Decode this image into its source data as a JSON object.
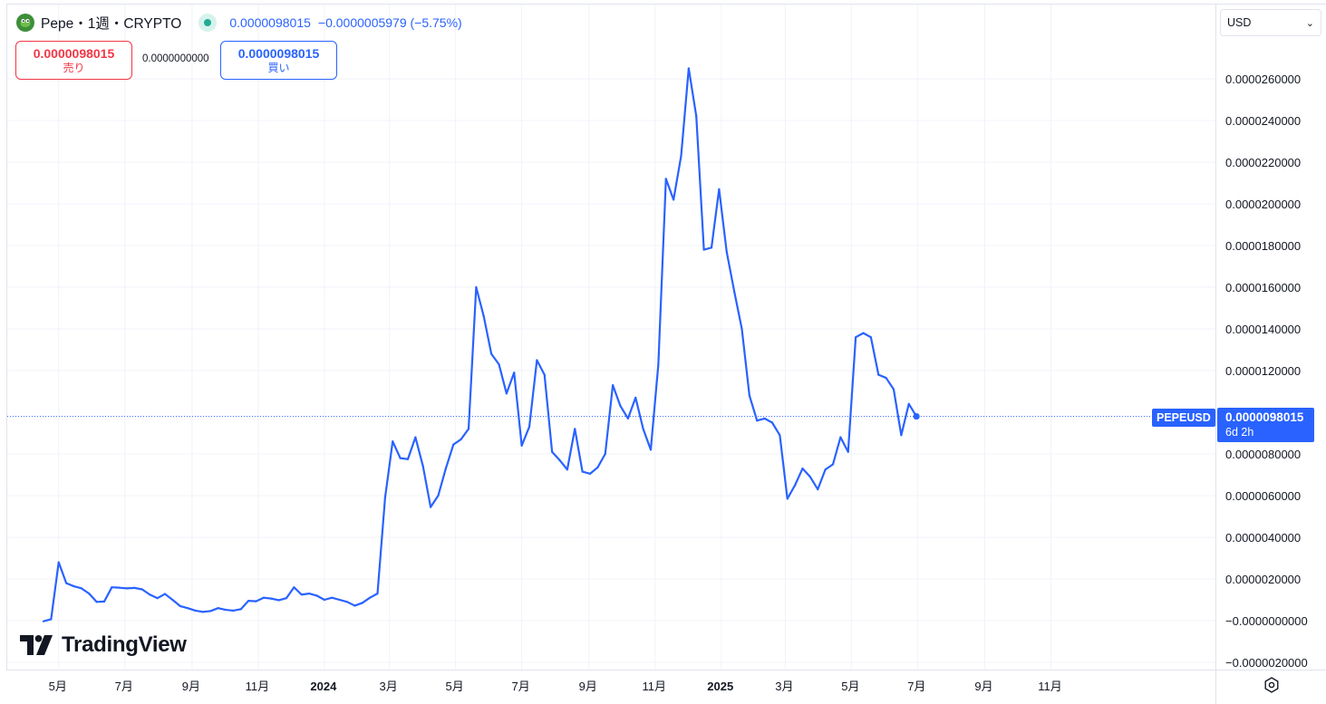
{
  "header": {
    "symbol_title": "Pepe・1週・CRYPTO",
    "last_price": "0.0000098015",
    "change": "−0.0000005979 (−5.75%)",
    "symbol_logo_icon": "frog-logo-icon",
    "status_icon": "market-open-dot-icon"
  },
  "trade": {
    "sell_price": "0.0000098015",
    "sell_label": "売り",
    "spread": "0.0000000000",
    "buy_price": "0.0000098015",
    "buy_label": "買い"
  },
  "currency": {
    "value": "USD"
  },
  "series_tag": "PEPEUSD",
  "last_price_tag": {
    "value": "0.0000098015",
    "countdown": "6d 2h"
  },
  "branding": {
    "wordmark": "TradingView"
  },
  "colors": {
    "line": "#2962ff",
    "sell": "#f23645",
    "buy": "#2962ff",
    "grid": "#f0f3fa"
  },
  "chart_data": {
    "type": "line",
    "series": [
      {
        "name": "PEPEUSD",
        "x": [
          "2023-04-17",
          "2023-04-24",
          "2023-05-01",
          "2023-05-08",
          "2023-05-15",
          "2023-05-22",
          "2023-05-29",
          "2023-06-05",
          "2023-06-12",
          "2023-06-19",
          "2023-06-26",
          "2023-07-03",
          "2023-07-10",
          "2023-07-17",
          "2023-07-24",
          "2023-07-31",
          "2023-08-07",
          "2023-08-14",
          "2023-08-21",
          "2023-08-28",
          "2023-09-04",
          "2023-09-11",
          "2023-09-18",
          "2023-09-25",
          "2023-10-02",
          "2023-10-09",
          "2023-10-16",
          "2023-10-23",
          "2023-10-30",
          "2023-11-06",
          "2023-11-13",
          "2023-11-20",
          "2023-11-27",
          "2023-12-04",
          "2023-12-11",
          "2023-12-18",
          "2023-12-25",
          "2024-01-01",
          "2024-01-08",
          "2024-01-15",
          "2024-01-22",
          "2024-01-29",
          "2024-02-05",
          "2024-02-12",
          "2024-02-19",
          "2024-02-26",
          "2024-03-04",
          "2024-03-11",
          "2024-03-18",
          "2024-03-25",
          "2024-04-01",
          "2024-04-08",
          "2024-04-15",
          "2024-04-22",
          "2024-04-29",
          "2024-05-06",
          "2024-05-13",
          "2024-05-20",
          "2024-05-27",
          "2024-06-03",
          "2024-06-10",
          "2024-06-17",
          "2024-06-24",
          "2024-07-01",
          "2024-07-08",
          "2024-07-15",
          "2024-07-22",
          "2024-07-29",
          "2024-08-05",
          "2024-08-12",
          "2024-08-19",
          "2024-08-26",
          "2024-09-02",
          "2024-09-09",
          "2024-09-16",
          "2024-09-23",
          "2024-09-30",
          "2024-10-07",
          "2024-10-14",
          "2024-10-21",
          "2024-10-28",
          "2024-11-04",
          "2024-11-11",
          "2024-11-18",
          "2024-11-25",
          "2024-12-02",
          "2024-12-09",
          "2024-12-16",
          "2024-12-23",
          "2024-12-30",
          "2025-01-06",
          "2025-01-13",
          "2025-01-20",
          "2025-01-27",
          "2025-02-03",
          "2025-02-10",
          "2025-02-17",
          "2025-02-24",
          "2025-03-03",
          "2025-03-10",
          "2025-03-17",
          "2025-03-24",
          "2025-03-31",
          "2025-04-07",
          "2025-04-14",
          "2025-04-21",
          "2025-04-28",
          "2025-05-05",
          "2025-05-12",
          "2025-05-19",
          "2025-05-26",
          "2025-06-02",
          "2025-06-09",
          "2025-06-16",
          "2025-06-23",
          "2025-06-30"
        ],
        "values": [
          -3e-08,
          7e-08,
          2.8e-06,
          1.8e-06,
          1.65e-06,
          1.55e-06,
          1.3e-06,
          9e-07,
          9.2e-07,
          1.6e-06,
          1.58e-06,
          1.55e-06,
          1.57e-06,
          1.5e-06,
          1.25e-06,
          1.08e-06,
          1.28e-06,
          1e-06,
          7e-07,
          6e-07,
          4.8e-07,
          4.2e-07,
          4.6e-07,
          6e-07,
          5.2e-07,
          4.8e-07,
          5.5e-07,
          9.5e-07,
          9.3e-07,
          1.1e-06,
          1.06e-06,
          9.8e-07,
          1.08e-06,
          1.6e-06,
          1.25e-06,
          1.3e-06,
          1.2e-06,
          1e-06,
          1.1e-06,
          1e-06,
          9e-07,
          7.2e-07,
          8.5e-07,
          1.1e-06,
          1.3e-06,
          5.9e-06,
          8.6e-06,
          7.8e-06,
          7.75e-06,
          8.8e-06,
          7.4e-06,
          5.45e-06,
          6e-06,
          7.3e-06,
          8.45e-06,
          8.7e-06,
          9.2e-06,
          1.6e-05,
          1.46e-05,
          1.28e-05,
          1.23e-05,
          1.09e-05,
          1.19e-05,
          8.4e-06,
          9.3e-06,
          1.25e-05,
          1.18e-05,
          8.1e-06,
          7.7e-06,
          7.25e-06,
          9.2e-06,
          7.15e-06,
          7.05e-06,
          7.35e-06,
          8e-06,
          1.13e-05,
          1.03e-05,
          9.7e-06,
          1.07e-05,
          9.2e-06,
          8.2e-06,
          1.23e-05,
          2.12e-05,
          2.02e-05,
          2.23e-05,
          2.65e-05,
          2.42e-05,
          1.78e-05,
          1.79e-05,
          2.07e-05,
          1.77e-05,
          1.58e-05,
          1.4e-05,
          1.08e-05,
          9.6e-06,
          9.7e-06,
          9.5e-06,
          8.9e-06,
          5.85e-06,
          6.5e-06,
          7.3e-06,
          6.9e-06,
          6.3e-06,
          7.25e-06,
          7.5e-06,
          8.8e-06,
          8.1e-06,
          1.36e-05,
          1.38e-05,
          1.36e-05,
          1.18e-05,
          1.165e-05,
          1.11e-05,
          8.9e-06,
          1.04e-05,
          9.8015e-06
        ]
      }
    ],
    "y_ticks": [
      "0.0000260000",
      "0.0000240000",
      "0.0000220000",
      "0.0000200000",
      "0.0000180000",
      "0.0000160000",
      "0.0000140000",
      "0.0000120000",
      "0.0000080000",
      "0.0000060000",
      "0.0000040000",
      "0.0000020000",
      "−0.0000000000",
      "−0.0000020000"
    ],
    "y_tick_values": [
      2.6e-05,
      2.4e-05,
      2.2e-05,
      2e-05,
      1.8e-05,
      1.6e-05,
      1.4e-05,
      1.2e-05,
      8e-06,
      6e-06,
      4e-06,
      2e-06,
      0,
      -2e-06
    ],
    "x_ticks": [
      {
        "label": "5月",
        "date": "2023-05-01",
        "bold": false
      },
      {
        "label": "7月",
        "date": "2023-07-01",
        "bold": false
      },
      {
        "label": "9月",
        "date": "2023-09-01",
        "bold": false
      },
      {
        "label": "11月",
        "date": "2023-11-01",
        "bold": false
      },
      {
        "label": "2024",
        "date": "2024-01-01",
        "bold": true
      },
      {
        "label": "3月",
        "date": "2024-03-01",
        "bold": false
      },
      {
        "label": "5月",
        "date": "2024-05-01",
        "bold": false
      },
      {
        "label": "7月",
        "date": "2024-07-01",
        "bold": false
      },
      {
        "label": "9月",
        "date": "2024-09-01",
        "bold": false
      },
      {
        "label": "11月",
        "date": "2024-11-01",
        "bold": false
      },
      {
        "label": "2025",
        "date": "2025-01-01",
        "bold": true
      },
      {
        "label": "3月",
        "date": "2025-03-01",
        "bold": false
      },
      {
        "label": "5月",
        "date": "2025-05-01",
        "bold": false
      },
      {
        "label": "7月",
        "date": "2025-07-01",
        "bold": false
      },
      {
        "label": "9月",
        "date": "2025-09-01",
        "bold": false
      },
      {
        "label": "11月",
        "date": "2025-11-01",
        "bold": false
      }
    ],
    "last_value": 9.8015e-06,
    "grid": true,
    "price_line": "dotted"
  }
}
